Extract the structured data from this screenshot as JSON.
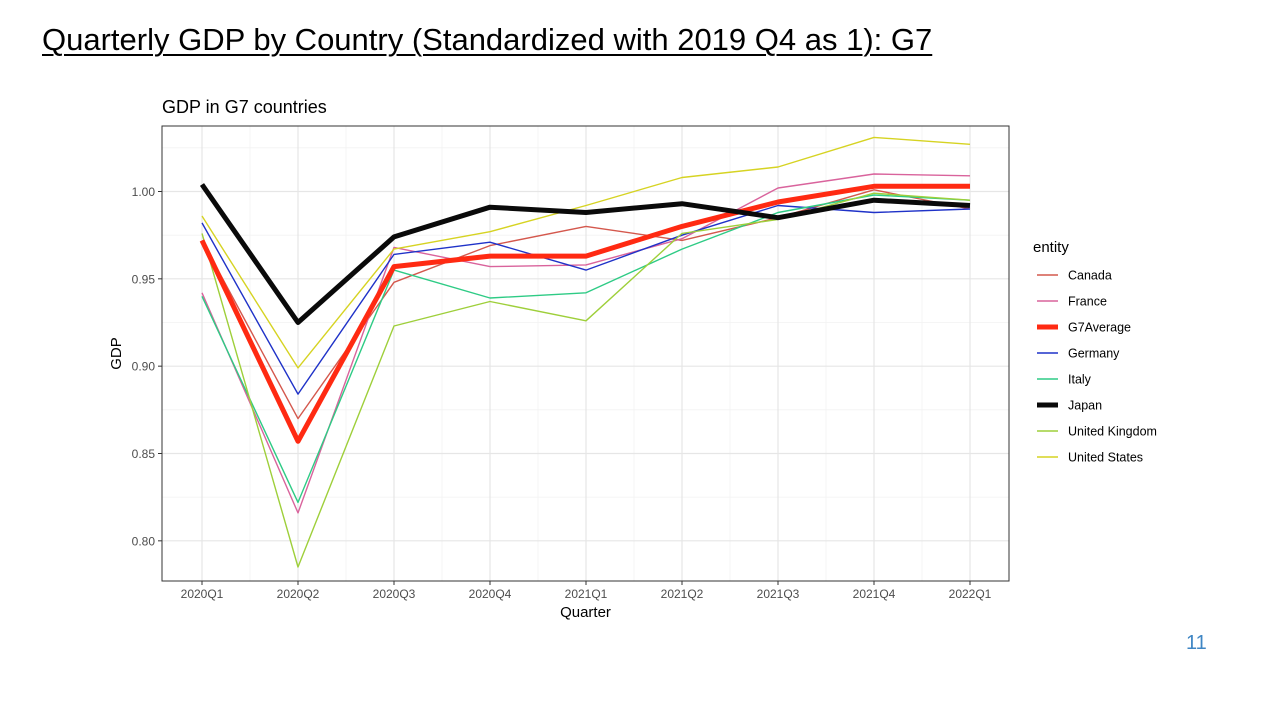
{
  "slide": {
    "title": "Quarterly GDP by Country (Standardized  with 2019 Q4 as 1): G7",
    "page_number": "11"
  },
  "chart_data": {
    "type": "line",
    "title": "GDP in G7 countries",
    "xlabel": "Quarter",
    "ylabel": "GDP",
    "categories": [
      "2020Q1",
      "2020Q2",
      "2020Q3",
      "2020Q4",
      "2021Q1",
      "2021Q2",
      "2021Q3",
      "2021Q4",
      "2022Q1"
    ],
    "ylim": [
      0.777,
      1.0375
    ],
    "yticks": [
      0.8,
      0.85,
      0.9,
      0.95,
      1.0
    ],
    "ytick_labels": [
      "0.80",
      "0.85",
      "0.90",
      "0.95",
      "1.00"
    ],
    "grid": true,
    "legend_title": "entity",
    "legend_position": "right",
    "series": [
      {
        "name": "Canada",
        "color": "#d4584d",
        "emphasis": false,
        "values": [
          0.972,
          0.87,
          0.948,
          0.969,
          0.98,
          0.972,
          0.985,
          1.001,
          0.99
        ]
      },
      {
        "name": "France",
        "color": "#d9639c",
        "emphasis": false,
        "values": [
          0.942,
          0.816,
          0.968,
          0.957,
          0.958,
          0.973,
          1.002,
          1.01,
          1.009
        ]
      },
      {
        "name": "G7Average",
        "color": "#ff2a12",
        "emphasis": true,
        "values": [
          0.972,
          0.857,
          0.957,
          0.963,
          0.963,
          0.98,
          0.994,
          1.003,
          1.003
        ]
      },
      {
        "name": "Germany",
        "color": "#1f32c8",
        "emphasis": false,
        "values": [
          0.982,
          0.884,
          0.964,
          0.971,
          0.955,
          0.975,
          0.992,
          0.988,
          0.99
        ]
      },
      {
        "name": "Italy",
        "color": "#2ecb85",
        "emphasis": false,
        "values": [
          0.94,
          0.822,
          0.955,
          0.939,
          0.942,
          0.967,
          0.988,
          0.998,
          0.995
        ]
      },
      {
        "name": "Japan",
        "color": "#0a0a0a",
        "emphasis": true,
        "values": [
          1.004,
          0.925,
          0.974,
          0.991,
          0.988,
          0.993,
          0.985,
          0.995,
          0.992
        ]
      },
      {
        "name": "United Kingdom",
        "color": "#9ecf3a",
        "emphasis": false,
        "values": [
          0.976,
          0.785,
          0.923,
          0.937,
          0.926,
          0.976,
          0.984,
          0.999,
          0.995
        ]
      },
      {
        "name": "United States",
        "color": "#d6d322",
        "emphasis": false,
        "values": [
          0.986,
          0.899,
          0.967,
          0.977,
          0.992,
          1.008,
          1.014,
          1.031,
          1.027
        ]
      }
    ]
  }
}
